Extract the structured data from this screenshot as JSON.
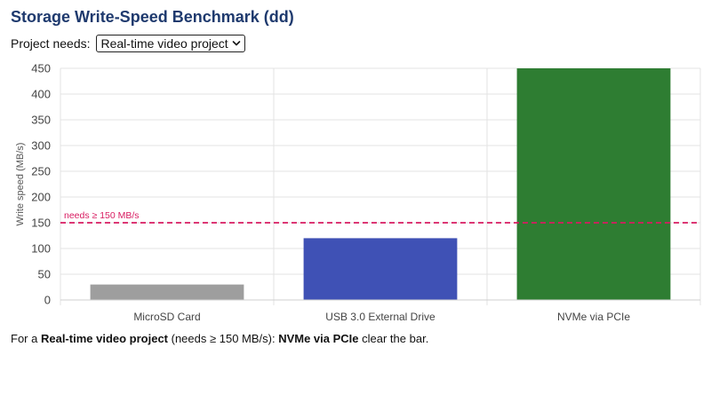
{
  "page": {
    "title": "Storage Write-Speed Benchmark (dd)"
  },
  "controls": {
    "needs_label": "Project needs:",
    "project_select": {
      "selected": "Real-time video project"
    }
  },
  "result": {
    "prefix": "For a ",
    "project": "Real-time video project",
    "needs": " (needs ≥ 150 MB/s): ",
    "winner": "NVMe via PCIe",
    "suffix": " clear the bar."
  },
  "colors": {
    "title": "#1f3a6e",
    "threshold": "#d81b60"
  },
  "chart_data": {
    "type": "bar",
    "title": "",
    "xlabel": "",
    "ylabel": "Write speed (MB/s)",
    "ylim": [
      0,
      450
    ],
    "yticks": [
      0,
      50,
      100,
      150,
      200,
      250,
      300,
      350,
      400,
      450
    ],
    "grid": true,
    "categories": [
      "MicroSD Card",
      "USB 3.0 External Drive",
      "NVMe via PCIe"
    ],
    "series": [
      {
        "values": [
          30,
          120,
          450
        ],
        "colors": [
          "#9e9e9e",
          "#3f51b5",
          "#2e7d32"
        ]
      }
    ],
    "threshold": {
      "value": 150,
      "label": "needs ≥ 150 MB/s",
      "color": "#d81b60",
      "style": "dashed"
    }
  }
}
